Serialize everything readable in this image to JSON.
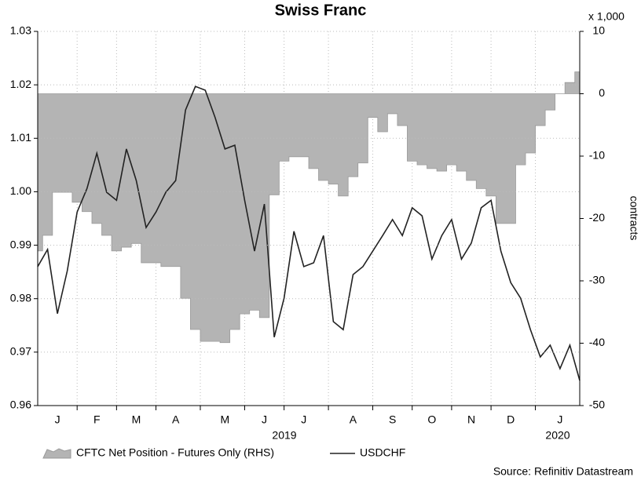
{
  "chart_data": {
    "type": "line",
    "title": "Swiss Franc",
    "y2_multiplier_label": "x 1,000",
    "y2_label": "contracts",
    "source": "Source: Refinitiv Datastream",
    "year_labels": [
      "2019",
      "2020"
    ],
    "categories": [
      null,
      null,
      "J",
      null,
      null,
      null,
      "F",
      null,
      null,
      null,
      "M",
      null,
      null,
      null,
      "A",
      null,
      null,
      null,
      null,
      "M",
      null,
      null,
      null,
      "J",
      null,
      null,
      null,
      "J",
      null,
      null,
      null,
      null,
      "A",
      null,
      null,
      null,
      "S",
      null,
      null,
      null,
      "O",
      null,
      null,
      null,
      "N",
      null,
      null,
      null,
      "D",
      null,
      null,
      null,
      null,
      "J",
      null,
      null
    ],
    "ylim": [
      0.96,
      1.03
    ],
    "yticks": [
      0.96,
      0.97,
      0.98,
      0.99,
      {
        "value": 1,
        "label": "1.00"
      },
      1.01,
      1.02,
      1.03
    ],
    "y2lim": [
      -50,
      10
    ],
    "y2ticks": [
      -50,
      -40,
      -30,
      -20,
      -10,
      0,
      10
    ],
    "grid": true,
    "legend": "bottom",
    "series": [
      {
        "name": "CFTC Net Position - Futures Only (RHS)",
        "type": "area",
        "axis": "y2",
        "color": "#b4b4b4",
        "values": [
          -25.2,
          -22.7,
          -15.8,
          -15.8,
          -17.4,
          -18.9,
          -20.8,
          -22.7,
          -25.2,
          -24.6,
          -24.0,
          -27.1,
          -27.1,
          -27.7,
          -27.7,
          -32.8,
          -37.8,
          -39.7,
          -39.7,
          -39.9,
          -37.8,
          -35.3,
          -34.7,
          -35.9,
          -16.2,
          -10.8,
          -10.1,
          -10.1,
          -12.0,
          -13.9,
          -14.5,
          -16.4,
          -13.3,
          -11.1,
          -3.8,
          -6.1,
          -3.2,
          -5.1,
          -10.8,
          -11.4,
          -12.0,
          -12.4,
          -11.4,
          -12.4,
          -13.9,
          -15.2,
          -16.4,
          -20.8,
          -20.8,
          -11.4,
          -9.5,
          -5.1,
          -2.6,
          0,
          1.8,
          3.5
        ]
      },
      {
        "name": "USDCHF",
        "type": "line",
        "color": "#222222",
        "values": [
          0.986,
          0.9892,
          0.9772,
          0.9852,
          0.9962,
          1.0006,
          1.0072,
          0.9999,
          0.9984,
          1.008,
          1.0021,
          0.9933,
          0.9962,
          0.9999,
          1.0021,
          1.0153,
          1.0197,
          1.019,
          1.0139,
          1.008,
          1.0087,
          0.9984,
          0.9889,
          0.9977,
          0.9728,
          0.9801,
          0.9926,
          0.986,
          0.9867,
          0.9918,
          0.9757,
          0.9742,
          0.9845,
          0.986,
          0.9889,
          0.9918,
          0.9948,
          0.9918,
          0.997,
          0.9955,
          0.9874,
          0.9918,
          0.9948,
          0.9874,
          0.9904,
          0.997,
          0.9984,
          0.9889,
          0.983,
          0.9801,
          0.9742,
          0.9691,
          0.9713,
          0.9669,
          0.9713,
          0.9647
        ]
      }
    ]
  }
}
